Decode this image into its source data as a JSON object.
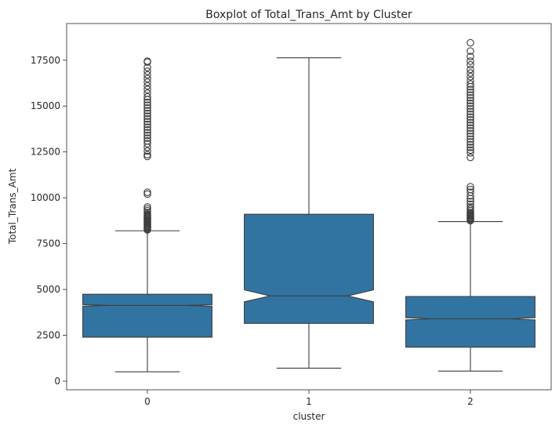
{
  "chart_data": {
    "type": "boxplot",
    "title": "Boxplot of Total_Trans_Amt by Cluster",
    "xlabel": "cluster",
    "ylabel": "Total_Trans_Amt",
    "ylim": [
      -470,
      19500
    ],
    "yticks": [
      0,
      2500,
      5000,
      7500,
      10000,
      12500,
      15000,
      17500
    ],
    "ytick_labels": [
      "0",
      "2500",
      "5000",
      "7500",
      "10000",
      "12500",
      "15000",
      "17500"
    ],
    "categories": [
      "0",
      "1",
      "2"
    ],
    "notched": true,
    "grid": false,
    "fill_color": "#3274a1",
    "line_color": "#3d3d3d",
    "boxes": [
      {
        "category": "0",
        "whisker_low": 510,
        "q1": 2400,
        "median": 4130,
        "q3": 4740,
        "whisker_high": 8200,
        "notch_low": 4090,
        "notch_high": 4170,
        "outliers": [
          8250,
          8300,
          8350,
          8400,
          8450,
          8500,
          8550,
          8600,
          8650,
          8700,
          8750,
          8800,
          8850,
          8900,
          8950,
          9000,
          9050,
          9100,
          9200,
          9300,
          9400,
          9500,
          10200,
          10300,
          12250,
          12350,
          12550,
          12750,
          12950,
          13100,
          13250,
          13400,
          13550,
          13700,
          13850,
          14000,
          14150,
          14300,
          14450,
          14600,
          14750,
          14900,
          15050,
          15200,
          15350,
          15500,
          15700,
          15900,
          16100,
          16300,
          16500,
          16700,
          16900,
          17100,
          17400,
          17450
        ]
      },
      {
        "category": "1",
        "whisker_low": 710,
        "q1": 3150,
        "median": 4650,
        "q3": 9100,
        "whisker_high": 17630,
        "notch_low": 4330,
        "notch_high": 4980,
        "outliers": []
      },
      {
        "category": "2",
        "whisker_low": 550,
        "q1": 1850,
        "median": 3400,
        "q3": 4620,
        "whisker_high": 8700,
        "notch_low": 3340,
        "notch_high": 3460,
        "outliers": [
          8750,
          8800,
          8850,
          8900,
          8950,
          9000,
          9050,
          9100,
          9150,
          9200,
          9300,
          9400,
          9500,
          9650,
          9800,
          9950,
          10100,
          10300,
          10450,
          10600,
          12200,
          12450,
          12600,
          12750,
          12900,
          13050,
          13200,
          13350,
          13500,
          13650,
          13800,
          13950,
          14100,
          14250,
          14400,
          14550,
          14700,
          14850,
          15000,
          15150,
          15300,
          15450,
          15600,
          15750,
          15900,
          16050,
          16200,
          16400,
          16600,
          16800,
          17000,
          17250,
          17450,
          17700,
          18000,
          18450
        ]
      }
    ]
  }
}
